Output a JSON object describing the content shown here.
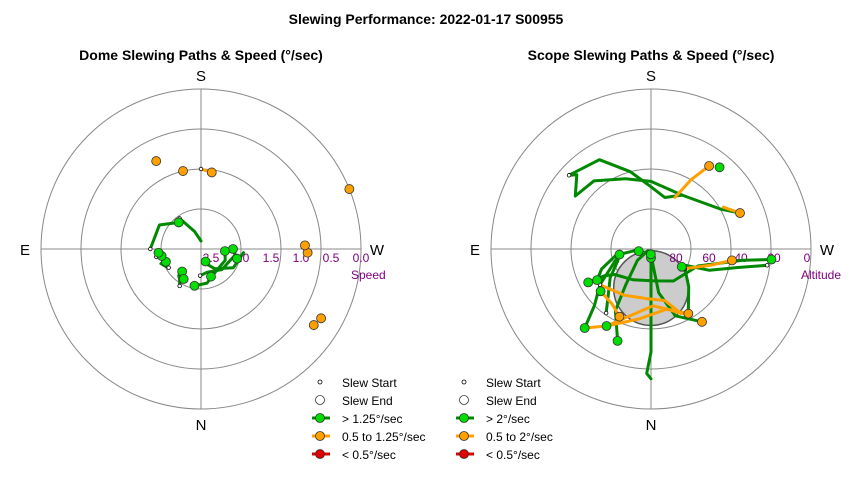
{
  "title": "Slewing Performance: 2022-01-17 S00955",
  "colors": {
    "fast": "#00dd00",
    "fast_line": "#008800",
    "medium": "#ffa000",
    "slow": "#dd0000",
    "ring": "#888888",
    "axis_label": "#800080",
    "zenith_fill": "#cccccc"
  },
  "chart_data": [
    {
      "type": "scatter",
      "subtype": "polar",
      "title": "Dome Slewing Paths & Speed (°/sec)",
      "compass": {
        "top": "S",
        "bottom": "N",
        "left": "E",
        "right": "W"
      },
      "radial_label": "Speed",
      "radial_ticks": [
        "2.5",
        "2.0",
        "1.5",
        "1.0",
        "0.5",
        "0.0"
      ],
      "radial_range": [
        3.0,
        0.0
      ],
      "paths": [
        {
          "speed_class": "fast",
          "points": [
            [
              190,
              2.75
            ],
            [
              200,
              2.7
            ],
            [
              215,
              2.55
            ],
            [
              240,
              2.3
            ],
            [
              265,
              2.2
            ]
          ]
        },
        {
          "speed_class": "fast",
          "points": [
            [
              178,
              2.5
            ],
            [
              195,
              2.55
            ],
            [
              225,
              2.45
            ],
            [
              260,
              2.35
            ],
            [
              270,
              2.4
            ]
          ]
        },
        {
          "speed_class": "fast",
          "points": [
            [
              170,
              2.3
            ],
            [
              190,
              2.35
            ],
            [
              215,
              2.5
            ],
            [
              245,
              2.5
            ],
            [
              268,
              2.55
            ]
          ]
        },
        {
          "speed_class": "fast",
          "points": [
            [
              150,
              2.2
            ],
            [
              145,
              2.3
            ],
            [
              140,
              2.35
            ]
          ]
        },
        {
          "speed_class": "fast",
          "points": [
            [
              120,
              2.3
            ],
            [
              115,
              2.25
            ],
            [
              110,
              2.2
            ]
          ]
        },
        {
          "speed_class": "fast",
          "points": [
            [
              100,
              2.15
            ],
            [
              100,
              2.2
            ]
          ]
        },
        {
          "speed_class": "fast",
          "points": [
            [
              90,
              2.05
            ],
            [
              60,
              2.1
            ],
            [
              40,
              2.35
            ]
          ]
        },
        {
          "speed_class": "fast",
          "points": [
            [
              35,
              2.3
            ],
            [
              20,
              2.65
            ],
            [
              0,
              2.85
            ]
          ]
        },
        {
          "speed_class": "medium",
          "points": [
            [
              0,
              1.5
            ],
            [
              -8,
              1.55
            ]
          ]
        }
      ],
      "endpoints": [
        {
          "az": -8,
          "speed": 1.55,
          "class": "medium"
        },
        {
          "az": 13,
          "speed": 1.5,
          "class": "medium"
        },
        {
          "az": 27,
          "speed": 1.15,
          "class": "medium"
        },
        {
          "az": 268,
          "speed": 1.0,
          "class": "medium"
        },
        {
          "az": 292,
          "speed": 0.0,
          "class": "medium"
        },
        {
          "az": 272,
          "speed": 1.05,
          "class": "medium"
        },
        {
          "az": 236,
          "speed": 0.45,
          "class": "medium"
        },
        {
          "az": 240,
          "speed": 0.4,
          "class": "medium"
        },
        {
          "az": 200,
          "speed": 2.45,
          "class": "fast"
        },
        {
          "az": 140,
          "speed": 2.45,
          "class": "fast"
        },
        {
          "az": 110,
          "speed": 2.3,
          "class": "fast"
        },
        {
          "az": 100,
          "speed": 2.25,
          "class": "fast"
        },
        {
          "az": 95,
          "speed": 2.2,
          "class": "fast"
        },
        {
          "az": 40,
          "speed": 2.35,
          "class": "fast"
        },
        {
          "az": 270,
          "speed": 2.4,
          "class": "fast"
        },
        {
          "az": 255,
          "speed": 2.3,
          "class": "fast"
        },
        {
          "az": 265,
          "speed": 2.55,
          "class": "fast"
        },
        {
          "az": 170,
          "speed": 2.3,
          "class": "fast"
        },
        {
          "az": 150,
          "speed": 2.35,
          "class": "fast"
        },
        {
          "az": 200,
          "speed": 2.75,
          "class": "fast"
        }
      ],
      "legend": {
        "placement": "bottom-right",
        "items": [
          {
            "marker": "start",
            "label": "Slew Start"
          },
          {
            "marker": "end",
            "label": "Slew End"
          },
          {
            "marker": "fast",
            "label": "> 1.25°/sec"
          },
          {
            "marker": "medium",
            "label": "0.5 to 1.25°/sec"
          },
          {
            "marker": "slow",
            "label": "< 0.5°/sec"
          }
        ]
      }
    },
    {
      "type": "scatter",
      "subtype": "polar",
      "title": "Scope Slewing Paths & Speed (°/sec)",
      "compass": {
        "top": "S",
        "bottom": "N",
        "left": "E",
        "right": "W"
      },
      "radial_label": "Altitude",
      "radial_ticks": [
        "80",
        "60",
        "40",
        "20",
        "0"
      ],
      "radial_range": [
        90,
        0
      ],
      "zenith_exclusion": {
        "az": 180,
        "alt": 68,
        "radius_deg": 21
      },
      "paths": [
        {
          "speed_class": "fast",
          "points": [
            [
              180,
              85
            ],
            [
              180,
              55
            ],
            [
              180,
              32
            ],
            [
              178,
              20
            ],
            [
              180,
              17
            ]
          ]
        },
        {
          "speed_class": "fast",
          "points": [
            [
              215,
              40
            ],
            [
              200,
              50
            ],
            [
              190,
              65
            ],
            [
              178,
              87
            ]
          ]
        },
        {
          "speed_class": "fast",
          "points": [
            [
              160,
              35
            ],
            [
              150,
              50
            ],
            [
              145,
              65
            ],
            [
              130,
              80
            ],
            [
              118,
              88
            ]
          ]
        },
        {
          "speed_class": "fast",
          "points": [
            [
              140,
              32
            ],
            [
              135,
              45
            ],
            [
              125,
              55
            ],
            [
              110,
              68
            ],
            [
              100,
              72
            ]
          ]
        },
        {
          "speed_class": "fast",
          "points": [
            [
              145,
              46
            ],
            [
              140,
              52
            ],
            [
              125,
              62
            ],
            [
              110,
              70
            ],
            [
              100,
              72
            ]
          ]
        },
        {
          "speed_class": "fast",
          "points": [
            [
              118,
              50
            ],
            [
              120,
              60
            ],
            [
              125,
              65
            ],
            [
              150,
              70
            ],
            [
              185,
              72
            ],
            [
              215,
              68
            ],
            [
              250,
              62
            ],
            [
              263,
              38
            ],
            [
              265,
              22
            ]
          ]
        },
        {
          "speed_class": "fast",
          "points": [
            [
              262,
              24
            ],
            [
              258,
              40
            ],
            [
              250,
              55
            ],
            [
              245,
              68
            ],
            [
              240,
              70
            ]
          ]
        },
        {
          "speed_class": "fast",
          "points": [
            [
              292,
              36
            ],
            [
              300,
              45
            ],
            [
              330,
              55
            ],
            [
              0,
              52
            ],
            [
              20,
              48
            ],
            [
              40,
              40
            ],
            [
              55,
              38
            ],
            [
              45,
              31
            ],
            [
              48,
              28
            ]
          ]
        },
        {
          "speed_class": "fast",
          "points": [
            [
              48,
              28
            ],
            [
              30,
              32
            ],
            [
              15,
              45
            ],
            [
              0,
              55
            ],
            [
              345,
              60
            ],
            [
              330,
              55
            ]
          ]
        },
        {
          "speed_class": "fast",
          "points": [
            [
              120,
              55
            ],
            [
              112,
              60
            ],
            [
              100,
              70
            ],
            [
              95,
              82
            ],
            [
              100,
              83
            ]
          ]
        },
        {
          "speed_class": "fast",
          "points": [
            [
              210,
              48
            ],
            [
              225,
              60
            ],
            [
              240,
              68
            ]
          ]
        },
        {
          "speed_class": "medium",
          "points": [
            [
              140,
              32
            ],
            [
              150,
              40
            ],
            [
              165,
              52
            ],
            [
              182,
              58
            ],
            [
              195,
              55
            ],
            [
              205,
              50
            ],
            [
              210,
              48
            ]
          ]
        },
        {
          "speed_class": "medium",
          "points": [
            [
              150,
              40
            ],
            [
              170,
              50
            ],
            [
              195,
              55
            ],
            [
              210,
              48
            ]
          ]
        },
        {
          "speed_class": "medium",
          "points": [
            [
              125,
              55
            ],
            [
              150,
              60
            ],
            [
              175,
              62
            ],
            [
              195,
              60
            ],
            [
              205,
              50
            ]
          ]
        },
        {
          "speed_class": "medium",
          "points": [
            [
              130,
              53
            ],
            [
              145,
              52
            ],
            [
              155,
              48
            ]
          ]
        },
        {
          "speed_class": "medium",
          "points": [
            [
              240,
              68
            ],
            [
              255,
              55
            ],
            [
              262,
              44
            ]
          ]
        },
        {
          "speed_class": "medium",
          "points": [
            [
              292,
              36
            ],
            [
              300,
              43
            ]
          ]
        },
        {
          "speed_class": "medium",
          "points": [
            [
              325,
              33
            ],
            [
              330,
              45
            ],
            [
              335,
              58
            ]
          ]
        }
      ],
      "endpoints": [
        {
          "az": 180,
          "alt": 85,
          "class": "fast"
        },
        {
          "az": 160,
          "alt": 35,
          "class": "fast"
        },
        {
          "az": 140,
          "alt": 32,
          "class": "fast"
        },
        {
          "az": 215,
          "alt": 40,
          "class": "medium"
        },
        {
          "az": 210,
          "alt": 48,
          "class": "medium"
        },
        {
          "az": 150,
          "alt": 40,
          "class": "fast"
        },
        {
          "az": 155,
          "alt": 48,
          "class": "medium"
        },
        {
          "az": 130,
          "alt": 53,
          "class": "fast"
        },
        {
          "az": 120,
          "alt": 55,
          "class": "fast"
        },
        {
          "az": 118,
          "alt": 50,
          "class": "fast"
        },
        {
          "az": 100,
          "alt": 72,
          "class": "fast"
        },
        {
          "az": 100,
          "alt": 83,
          "class": "fast"
        },
        {
          "az": 178,
          "alt": 87,
          "class": "fast"
        },
        {
          "az": 240,
          "alt": 70,
          "class": "fast"
        },
        {
          "az": 262,
          "alt": 44,
          "class": "medium"
        },
        {
          "az": 265,
          "alt": 22,
          "class": "fast"
        },
        {
          "az": 292,
          "alt": 36,
          "class": "medium"
        },
        {
          "az": 325,
          "alt": 33,
          "class": "medium"
        },
        {
          "az": 320,
          "alt": 30,
          "class": "fast"
        }
      ],
      "legend": {
        "placement": "bottom-right",
        "items": [
          {
            "marker": "start",
            "label": "Slew Start"
          },
          {
            "marker": "end",
            "label": "Slew End"
          },
          {
            "marker": "fast",
            "label": "> 2°/sec"
          },
          {
            "marker": "medium",
            "label": "0.5 to 2°/sec"
          },
          {
            "marker": "slow",
            "label": "< 0.5°/sec"
          }
        ]
      }
    }
  ]
}
